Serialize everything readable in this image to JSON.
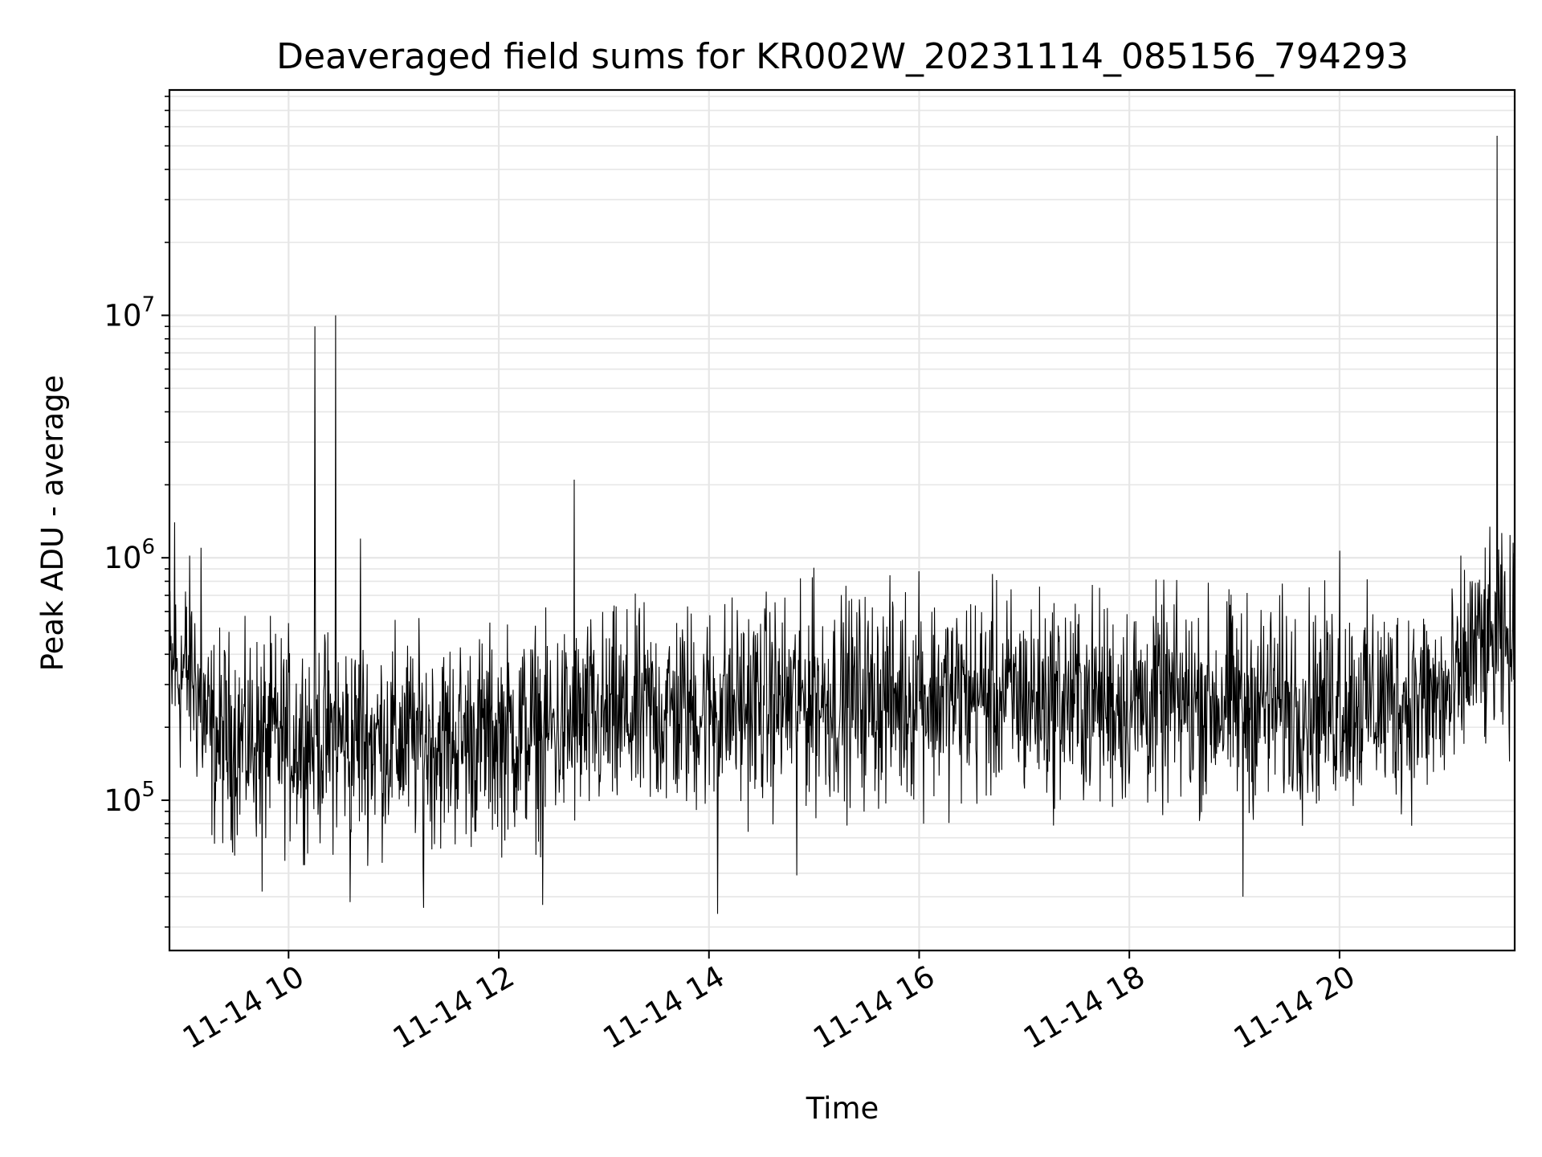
{
  "chart_data": {
    "type": "line",
    "title": "Deaveraged field sums for KR002W_20231114_085156_794293",
    "xlabel": "Time",
    "ylabel": "Peak ADU - average",
    "yscale": "log",
    "grid": true,
    "line_color": "#000000",
    "grid_color": "#e6e6e6",
    "xlim": [
      "2023-11-14 08:52",
      "2023-11-14 21:40"
    ],
    "ylim": [
      24000,
      85000000
    ],
    "x_ticks": [
      {
        "t": "2023-11-14 10:00",
        "label": "11-14 10"
      },
      {
        "t": "2023-11-14 12:00",
        "label": "11-14 12"
      },
      {
        "t": "2023-11-14 14:00",
        "label": "11-14 14"
      },
      {
        "t": "2023-11-14 16:00",
        "label": "11-14 16"
      },
      {
        "t": "2023-11-14 18:00",
        "label": "11-14 18"
      },
      {
        "t": "2023-11-14 20:00",
        "label": "11-14 20"
      }
    ],
    "y_ticks": [
      {
        "value": 100000,
        "base": "10",
        "exp": "5"
      },
      {
        "value": 1000000,
        "base": "10",
        "exp": "6"
      },
      {
        "value": 10000000,
        "base": "10",
        "exp": "7"
      }
    ],
    "baseline_trend": [
      {
        "t": "2023-11-14 08:52",
        "value": 320000
      },
      {
        "t": "2023-11-14 09:05",
        "value": 350000
      },
      {
        "t": "2023-11-14 09:15",
        "value": 180000
      },
      {
        "t": "2023-11-14 10:30",
        "value": 180000
      },
      {
        "t": "2023-11-14 11:30",
        "value": 175000
      },
      {
        "t": "2023-11-14 12:40",
        "value": 200000
      },
      {
        "t": "2023-11-14 13:30",
        "value": 230000
      },
      {
        "t": "2023-11-14 15:00",
        "value": 260000
      },
      {
        "t": "2023-11-14 16:30",
        "value": 270000
      },
      {
        "t": "2023-11-14 18:00",
        "value": 255000
      },
      {
        "t": "2023-11-14 19:30",
        "value": 250000
      },
      {
        "t": "2023-11-14 21:05",
        "value": 260000
      },
      {
        "t": "2023-11-14 21:15",
        "value": 420000
      },
      {
        "t": "2023-11-14 21:40",
        "value": 420000
      }
    ],
    "spikes": [
      {
        "t": "2023-11-14 08:55",
        "value": 1400000
      },
      {
        "t": "2023-11-14 09:10",
        "value": 1100000
      },
      {
        "t": "2023-11-14 10:15",
        "value": 9000000
      },
      {
        "t": "2023-11-14 10:27",
        "value": 10000000
      },
      {
        "t": "2023-11-14 10:41",
        "value": 1200000
      },
      {
        "t": "2023-11-14 12:43",
        "value": 2100000
      },
      {
        "t": "2023-11-14 15:00",
        "value": 910000
      },
      {
        "t": "2023-11-14 16:00",
        "value": 880000
      },
      {
        "t": "2023-11-14 20:00",
        "value": 1070000
      },
      {
        "t": "2023-11-14 21:30",
        "value": 55000000
      }
    ],
    "dips": [
      {
        "t": "2023-11-14 09:45",
        "value": 42000
      },
      {
        "t": "2023-11-14 10:35",
        "value": 38000
      },
      {
        "t": "2023-11-14 11:17",
        "value": 36000
      },
      {
        "t": "2023-11-14 12:25",
        "value": 37000
      },
      {
        "t": "2023-11-14 14:05",
        "value": 34000
      },
      {
        "t": "2023-11-14 14:50",
        "value": 49000
      },
      {
        "t": "2023-11-14 19:05",
        "value": 40000
      }
    ]
  }
}
